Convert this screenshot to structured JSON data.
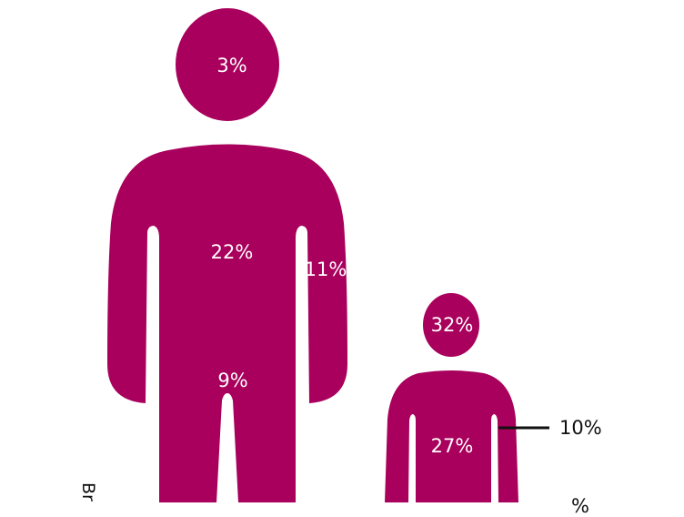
{
  "colors": {
    "figure": "#a8005c",
    "label_inside": "#ffffff",
    "label_outside": "#111111"
  },
  "adult": {
    "head": "3%",
    "torso": "22%",
    "arm": "11%",
    "legs": "9%"
  },
  "child": {
    "head": "32%",
    "torso": "27%",
    "arm": "10%",
    "lower": "%"
  },
  "side_text": "Br"
}
